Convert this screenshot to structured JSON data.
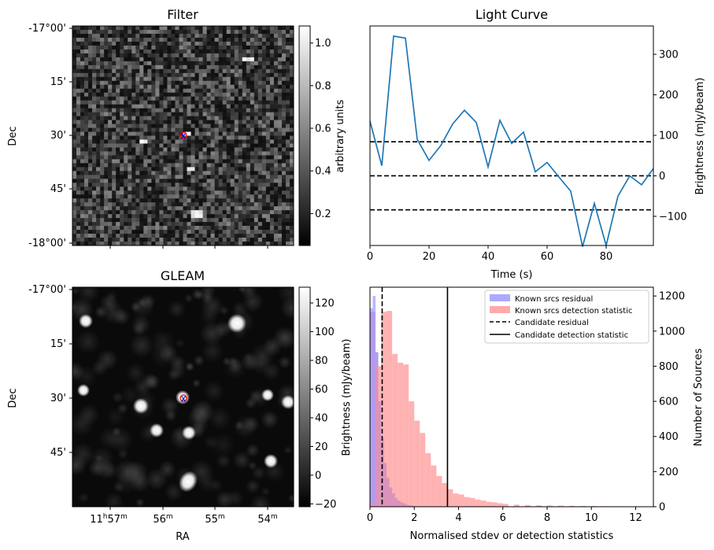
{
  "panels": {
    "filter": {
      "title": "Filter",
      "y_ticks": [
        "-17°00'",
        "15'",
        "30'",
        "45'",
        "-18°00'"
      ],
      "ylabel": "Dec",
      "colorbar": {
        "ticks": [
          "0.2",
          "0.4",
          "0.6",
          "0.8",
          "1.0"
        ],
        "label": "arbitrary units",
        "range": [
          0.05,
          1.08
        ]
      },
      "marker_label": "x"
    },
    "gleam": {
      "title": "GLEAM",
      "y_ticks": [
        "-17°00'",
        "15'",
        "30'",
        "45'"
      ],
      "ylabel": "Dec",
      "x_ticks": [
        {
          "main": "11",
          "sup1": "h",
          "mid": "57",
          "sup2": "m"
        },
        {
          "main": "56",
          "sup1": "",
          "mid": "",
          "sup2": "m"
        },
        {
          "main": "55",
          "sup1": "",
          "mid": "",
          "sup2": "m"
        },
        {
          "main": "54",
          "sup1": "",
          "mid": "",
          "sup2": "m"
        }
      ],
      "xlabel": "RA",
      "colorbar": {
        "ticks": [
          "−20",
          "0",
          "20",
          "40",
          "60",
          "80",
          "100",
          "120"
        ],
        "label": "Brightness (mJy/beam)",
        "range": [
          -22,
          131
        ]
      }
    }
  },
  "chart_data": [
    {
      "type": "line",
      "title": "Light Curve",
      "xlabel": "Time (s)",
      "ylabel": "Brightness (mJy/beam)",
      "xlim": [
        0,
        96
      ],
      "ylim": [
        -172,
        370
      ],
      "x_ticks": [
        0,
        20,
        40,
        60,
        80
      ],
      "y_ticks": [
        -100,
        0,
        100,
        200,
        300
      ],
      "x": [
        0,
        4,
        8,
        12,
        16,
        20,
        24,
        28,
        32,
        36,
        40,
        44,
        48,
        52,
        56,
        60,
        64,
        68,
        72,
        76,
        80,
        84,
        88,
        92,
        96
      ],
      "y": [
        135,
        25,
        345,
        340,
        90,
        38,
        75,
        128,
        162,
        132,
        22,
        137,
        80,
        108,
        10,
        33,
        -3,
        -38,
        -175,
        -68,
        -172,
        -50,
        0,
        -22,
        18
      ],
      "hlines": [
        {
          "y": 84,
          "style": "dashed"
        },
        {
          "y": 0,
          "style": "dashed"
        },
        {
          "y": -84,
          "style": "dashed"
        }
      ],
      "color": "#1f77b4"
    },
    {
      "type": "bar",
      "xlabel": "Normalised stdev or detection statistics",
      "ylabel": "Number of Sources",
      "xlim": [
        0,
        12.8
      ],
      "ylim": [
        0,
        1250
      ],
      "x_ticks": [
        0,
        2,
        4,
        6,
        8,
        10,
        12
      ],
      "y_ticks": [
        0,
        200,
        400,
        600,
        800,
        1000,
        1200
      ],
      "bin_width": 0.25,
      "series": [
        {
          "name": "Known srcs residual",
          "color": "#aaaaff",
          "bin_starts": [
            0.0,
            0.125,
            0.25,
            0.375,
            0.5,
            0.625,
            0.75,
            0.875,
            1.0,
            1.125,
            1.25,
            1.375,
            1.5,
            1.625,
            1.75,
            1.875,
            2.0
          ],
          "values": [
            1130,
            1200,
            880,
            600,
            390,
            250,
            165,
            110,
            75,
            50,
            35,
            25,
            18,
            12,
            8,
            5,
            3
          ]
        },
        {
          "name": "Known srcs detection statistic",
          "color": "#ffaaaa",
          "bin_starts": [
            0.0,
            0.25,
            0.5,
            0.75,
            1.0,
            1.25,
            1.5,
            1.75,
            2.0,
            2.25,
            2.5,
            2.75,
            3.0,
            3.25,
            3.5,
            3.75,
            4.0,
            4.25,
            4.5,
            4.75,
            5.0,
            5.25,
            5.5,
            5.75,
            6.0,
            6.5,
            7.0,
            7.5,
            8.0,
            8.5,
            9.0,
            9.5,
            10.0,
            10.5,
            11.0,
            11.5,
            12.0,
            12.5
          ],
          "values": [
            20,
            800,
            1110,
            1115,
            870,
            820,
            810,
            600,
            490,
            420,
            305,
            235,
            175,
            135,
            100,
            75,
            70,
            55,
            50,
            40,
            35,
            28,
            25,
            20,
            16,
            12,
            10,
            8,
            7,
            6,
            5,
            4,
            4,
            3,
            3,
            2,
            2,
            1
          ]
        }
      ],
      "vlines": [
        {
          "name": "Candidate residual",
          "x": 0.55,
          "style": "dashed"
        },
        {
          "name": "Candidate detection statistic",
          "x": 3.5,
          "style": "solid"
        }
      ],
      "left_label": "Brightness (mJy/beam)"
    }
  ]
}
